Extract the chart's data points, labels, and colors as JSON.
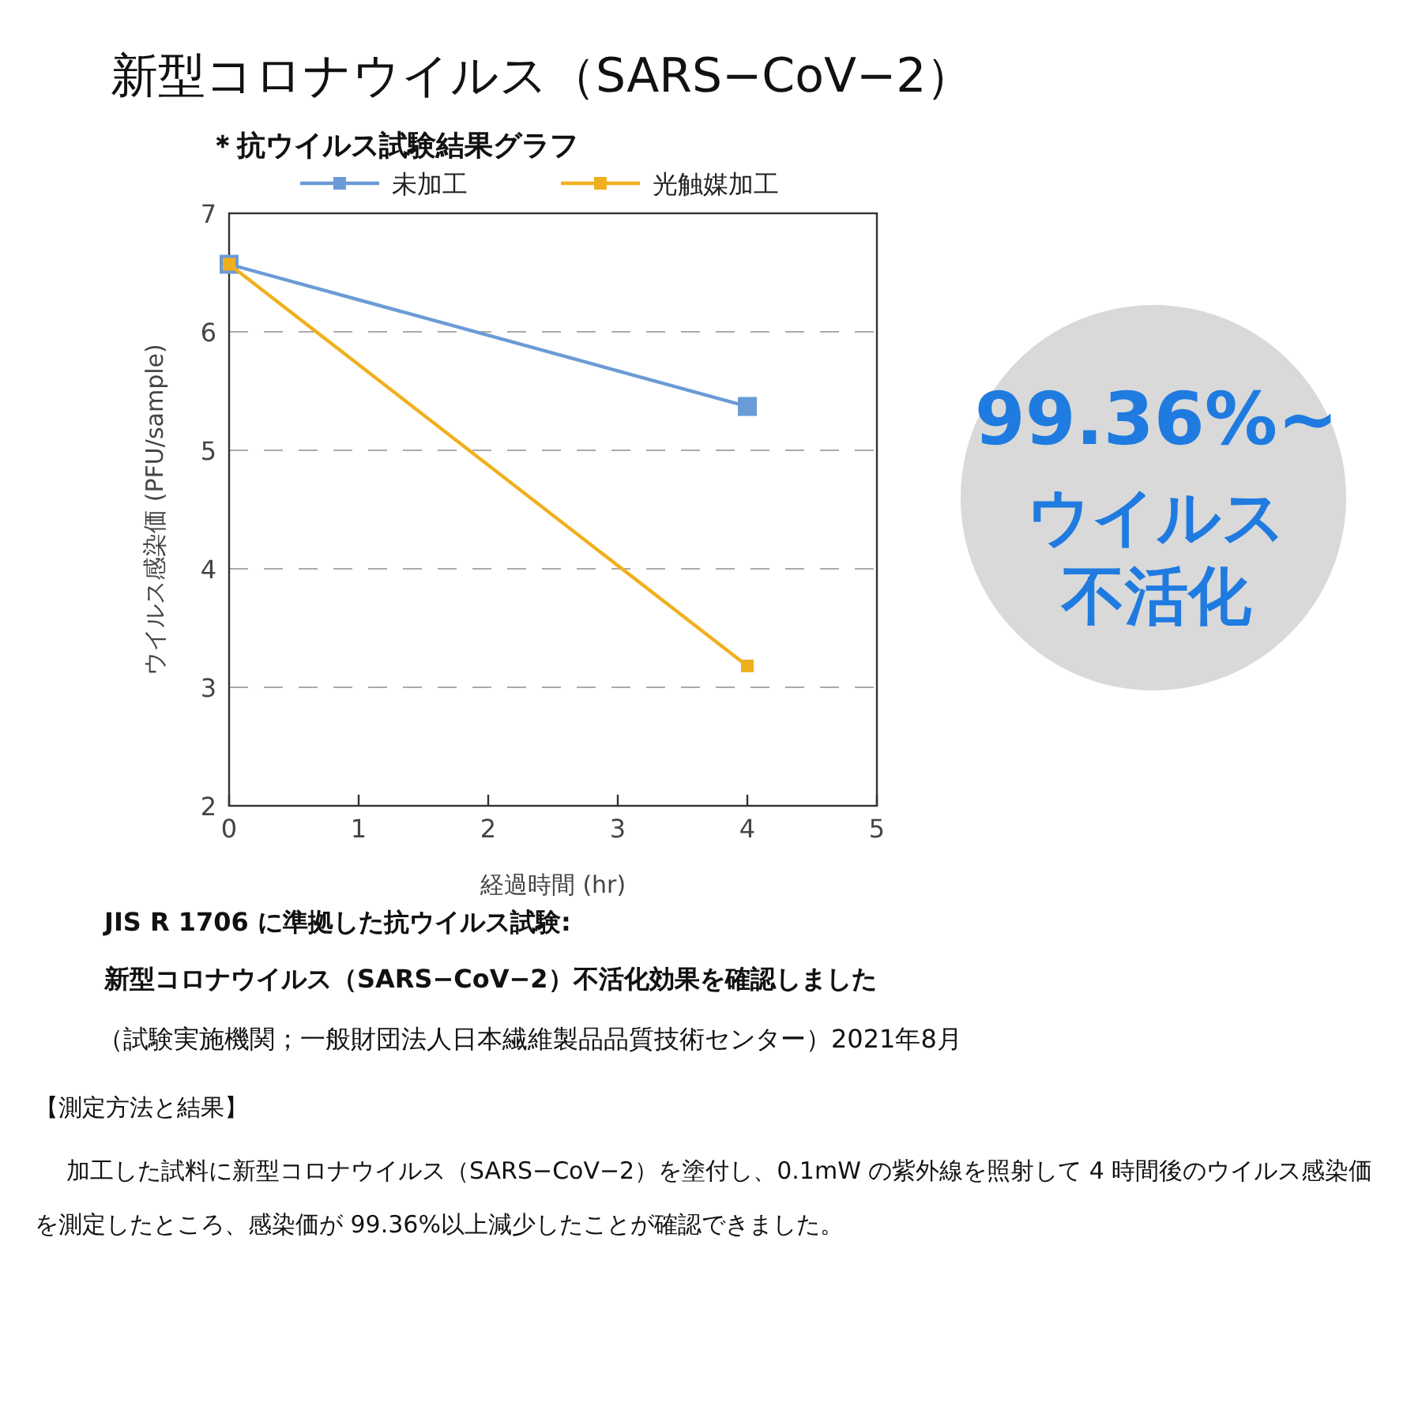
{
  "chart_data": {
    "type": "line",
    "title": "新型コロナウイルス（SARS−CoV−2）",
    "subtitle": "＊抗ウイルス試験結果グラフ",
    "xlabel": "経過時間 (hr)",
    "ylabel": "ウイルス感染価 (PFU/sample)",
    "x": [
      0,
      4
    ],
    "series": [
      {
        "name": "未加工",
        "color": "#6b9bd6",
        "values": [
          6.57,
          5.37
        ]
      },
      {
        "name": "光触媒加工",
        "color": "#f0b01e",
        "values": [
          6.57,
          3.18
        ]
      }
    ],
    "xlim": [
      0,
      5
    ],
    "ylim": [
      2,
      7
    ],
    "xticks": [
      0,
      1,
      2,
      3,
      4,
      5
    ],
    "yticks": [
      2,
      3,
      4,
      5,
      6,
      7
    ],
    "grid": "y",
    "legend": "top",
    "marker": "square",
    "line_style": "solid",
    "annotations": [
      "99.36%~",
      "ウイルス",
      "不活化",
      "JIS R 1706 に準拠した抗ウイルス試験:",
      "新型コロナウイルス（SARS−CoV−2）不活化効果を確認しました",
      "（試験実施機関；一般財団法人日本繊維製品品質技術センター）2021年8月",
      "【測定方法と結果】",
      "加工した試料に新型コロナウイルス（SARS−CoV−2）を塗付し、0.1mW の紫外線を照射して 4 時間後のウイルス感染価を測定したところ、感染価が 99.36%以上減少したことが確認できました。"
    ]
  }
}
